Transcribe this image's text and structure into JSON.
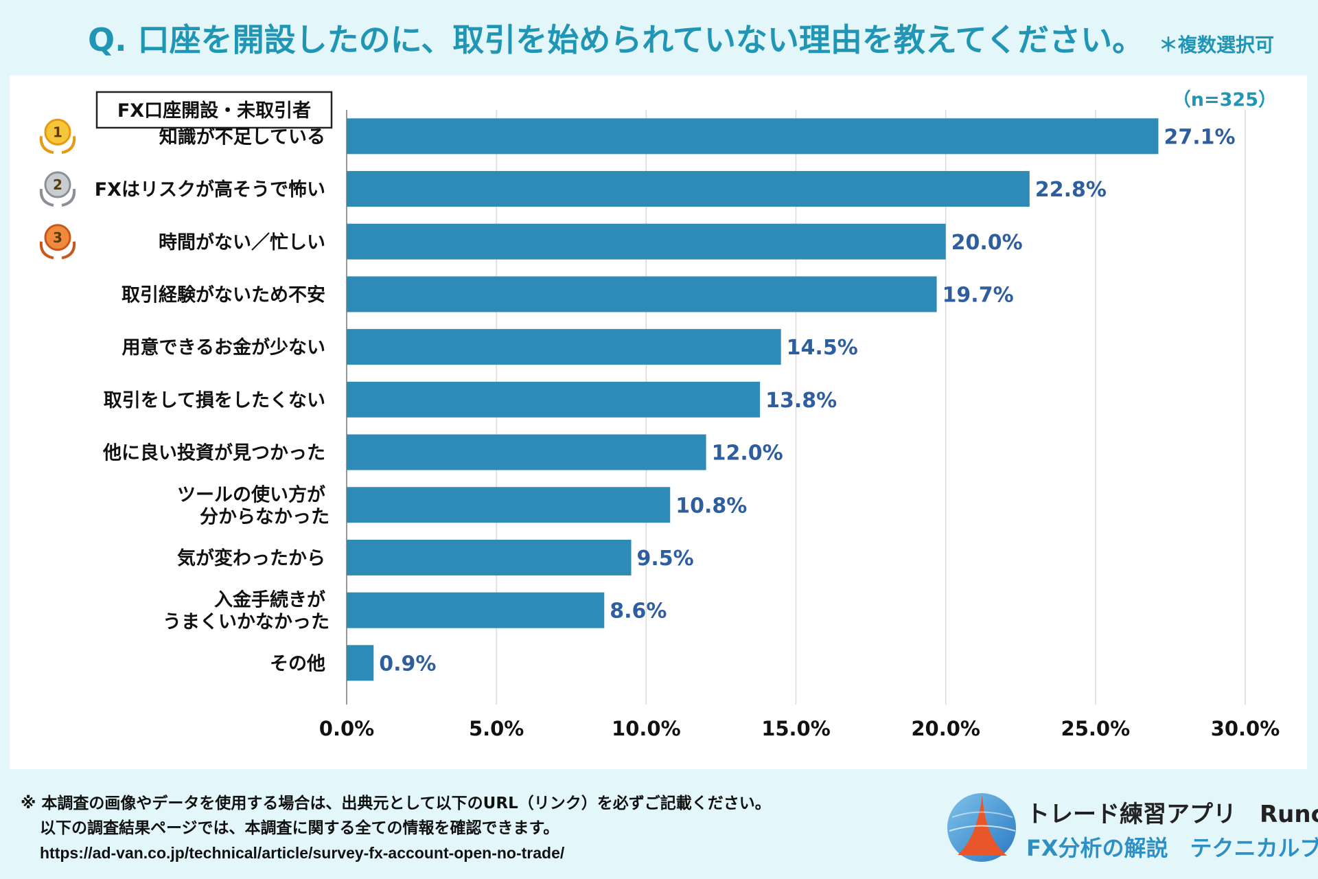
{
  "header": {
    "question": "Q. 口座を開設したのに、取引を始められていない理由を教えてください。",
    "multi_note": "＊複数選択可"
  },
  "chart_data": {
    "type": "bar",
    "orientation": "horizontal",
    "legend_box": "FX口座開設・未取引者",
    "sample_size": "（n=325）",
    "categories": [
      [
        "知識が不足している"
      ],
      [
        "FXはリスクが高そうで怖い"
      ],
      [
        "時間がない／忙しい"
      ],
      [
        "取引経験がないため不安"
      ],
      [
        "用意できるお金が少ない"
      ],
      [
        "取引をして損をしたくない"
      ],
      [
        "他に良い投資が見つかった"
      ],
      [
        "ツールの使い方が",
        "分からなかった"
      ],
      [
        "気が変わったから"
      ],
      [
        "入金手続きが",
        "うまくいかなかった"
      ],
      [
        "その他"
      ]
    ],
    "values": [
      27.1,
      22.8,
      20.0,
      19.7,
      14.5,
      13.8,
      12.0,
      10.8,
      9.5,
      8.6,
      0.9
    ],
    "value_labels": [
      "27.1%",
      "22.8%",
      "20.0%",
      "19.7%",
      "14.5%",
      "13.8%",
      "12.0%",
      "10.8%",
      "9.5%",
      "8.6%",
      "0.9%"
    ],
    "rank_badges": [
      "1",
      "2",
      "3"
    ],
    "xlim": [
      0,
      30
    ],
    "xticks": [
      0,
      5,
      10,
      15,
      20,
      25,
      30
    ],
    "xtick_labels": [
      "0.0%",
      "5.0%",
      "10.0%",
      "15.0%",
      "20.0%",
      "25.0%",
      "30.0%"
    ],
    "grid": true,
    "bar_color": "#2e8bb8",
    "value_label_color": "#2e5e9e"
  },
  "footer": {
    "line1": "※ 本調査の画像やデータを使用する場合は、出典元として以下のURL（リンク）を必ずご記載ください。",
    "line2": "以下の調査結果ページでは、本調査に関する全ての情報を確認できます。",
    "url": "https://ad-van.co.jp/technical/article/survey-fx-account-open-no-trade/"
  },
  "brand": {
    "name": "トレード練習アプリ　Runcha",
    "subtitle": "FX分析の解説　テクニカルブック"
  }
}
